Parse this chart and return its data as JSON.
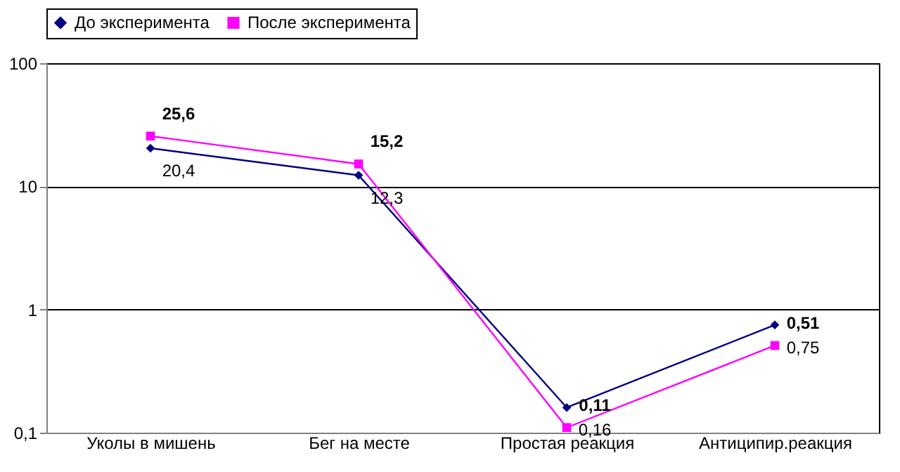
{
  "chart_data": {
    "type": "line",
    "categories": [
      "Уколы в мишень",
      "Бег на месте",
      "Простая реакция",
      "Антиципир.реакция"
    ],
    "series": [
      {
        "name": "До эксперимента",
        "color": "#000080",
        "marker": "diamond",
        "values": [
          20.4,
          12.3,
          0.16,
          0.75
        ],
        "value_labels": [
          "20,4",
          "12,3",
          "0,16",
          "0,75"
        ]
      },
      {
        "name": "После эксперимента",
        "color": "#ff00ff",
        "marker": "square",
        "values": [
          25.6,
          15.2,
          0.11,
          0.51
        ],
        "value_labels": [
          "25,6",
          "15,2",
          "0,11",
          "0,51"
        ]
      }
    ],
    "log": true,
    "ylim": [
      0.1,
      100
    ],
    "yticks": [
      {
        "value": 0.1,
        "label": "0,1"
      },
      1,
      10,
      100
    ],
    "grid": "y",
    "legend": "top",
    "line_style": "solid"
  }
}
